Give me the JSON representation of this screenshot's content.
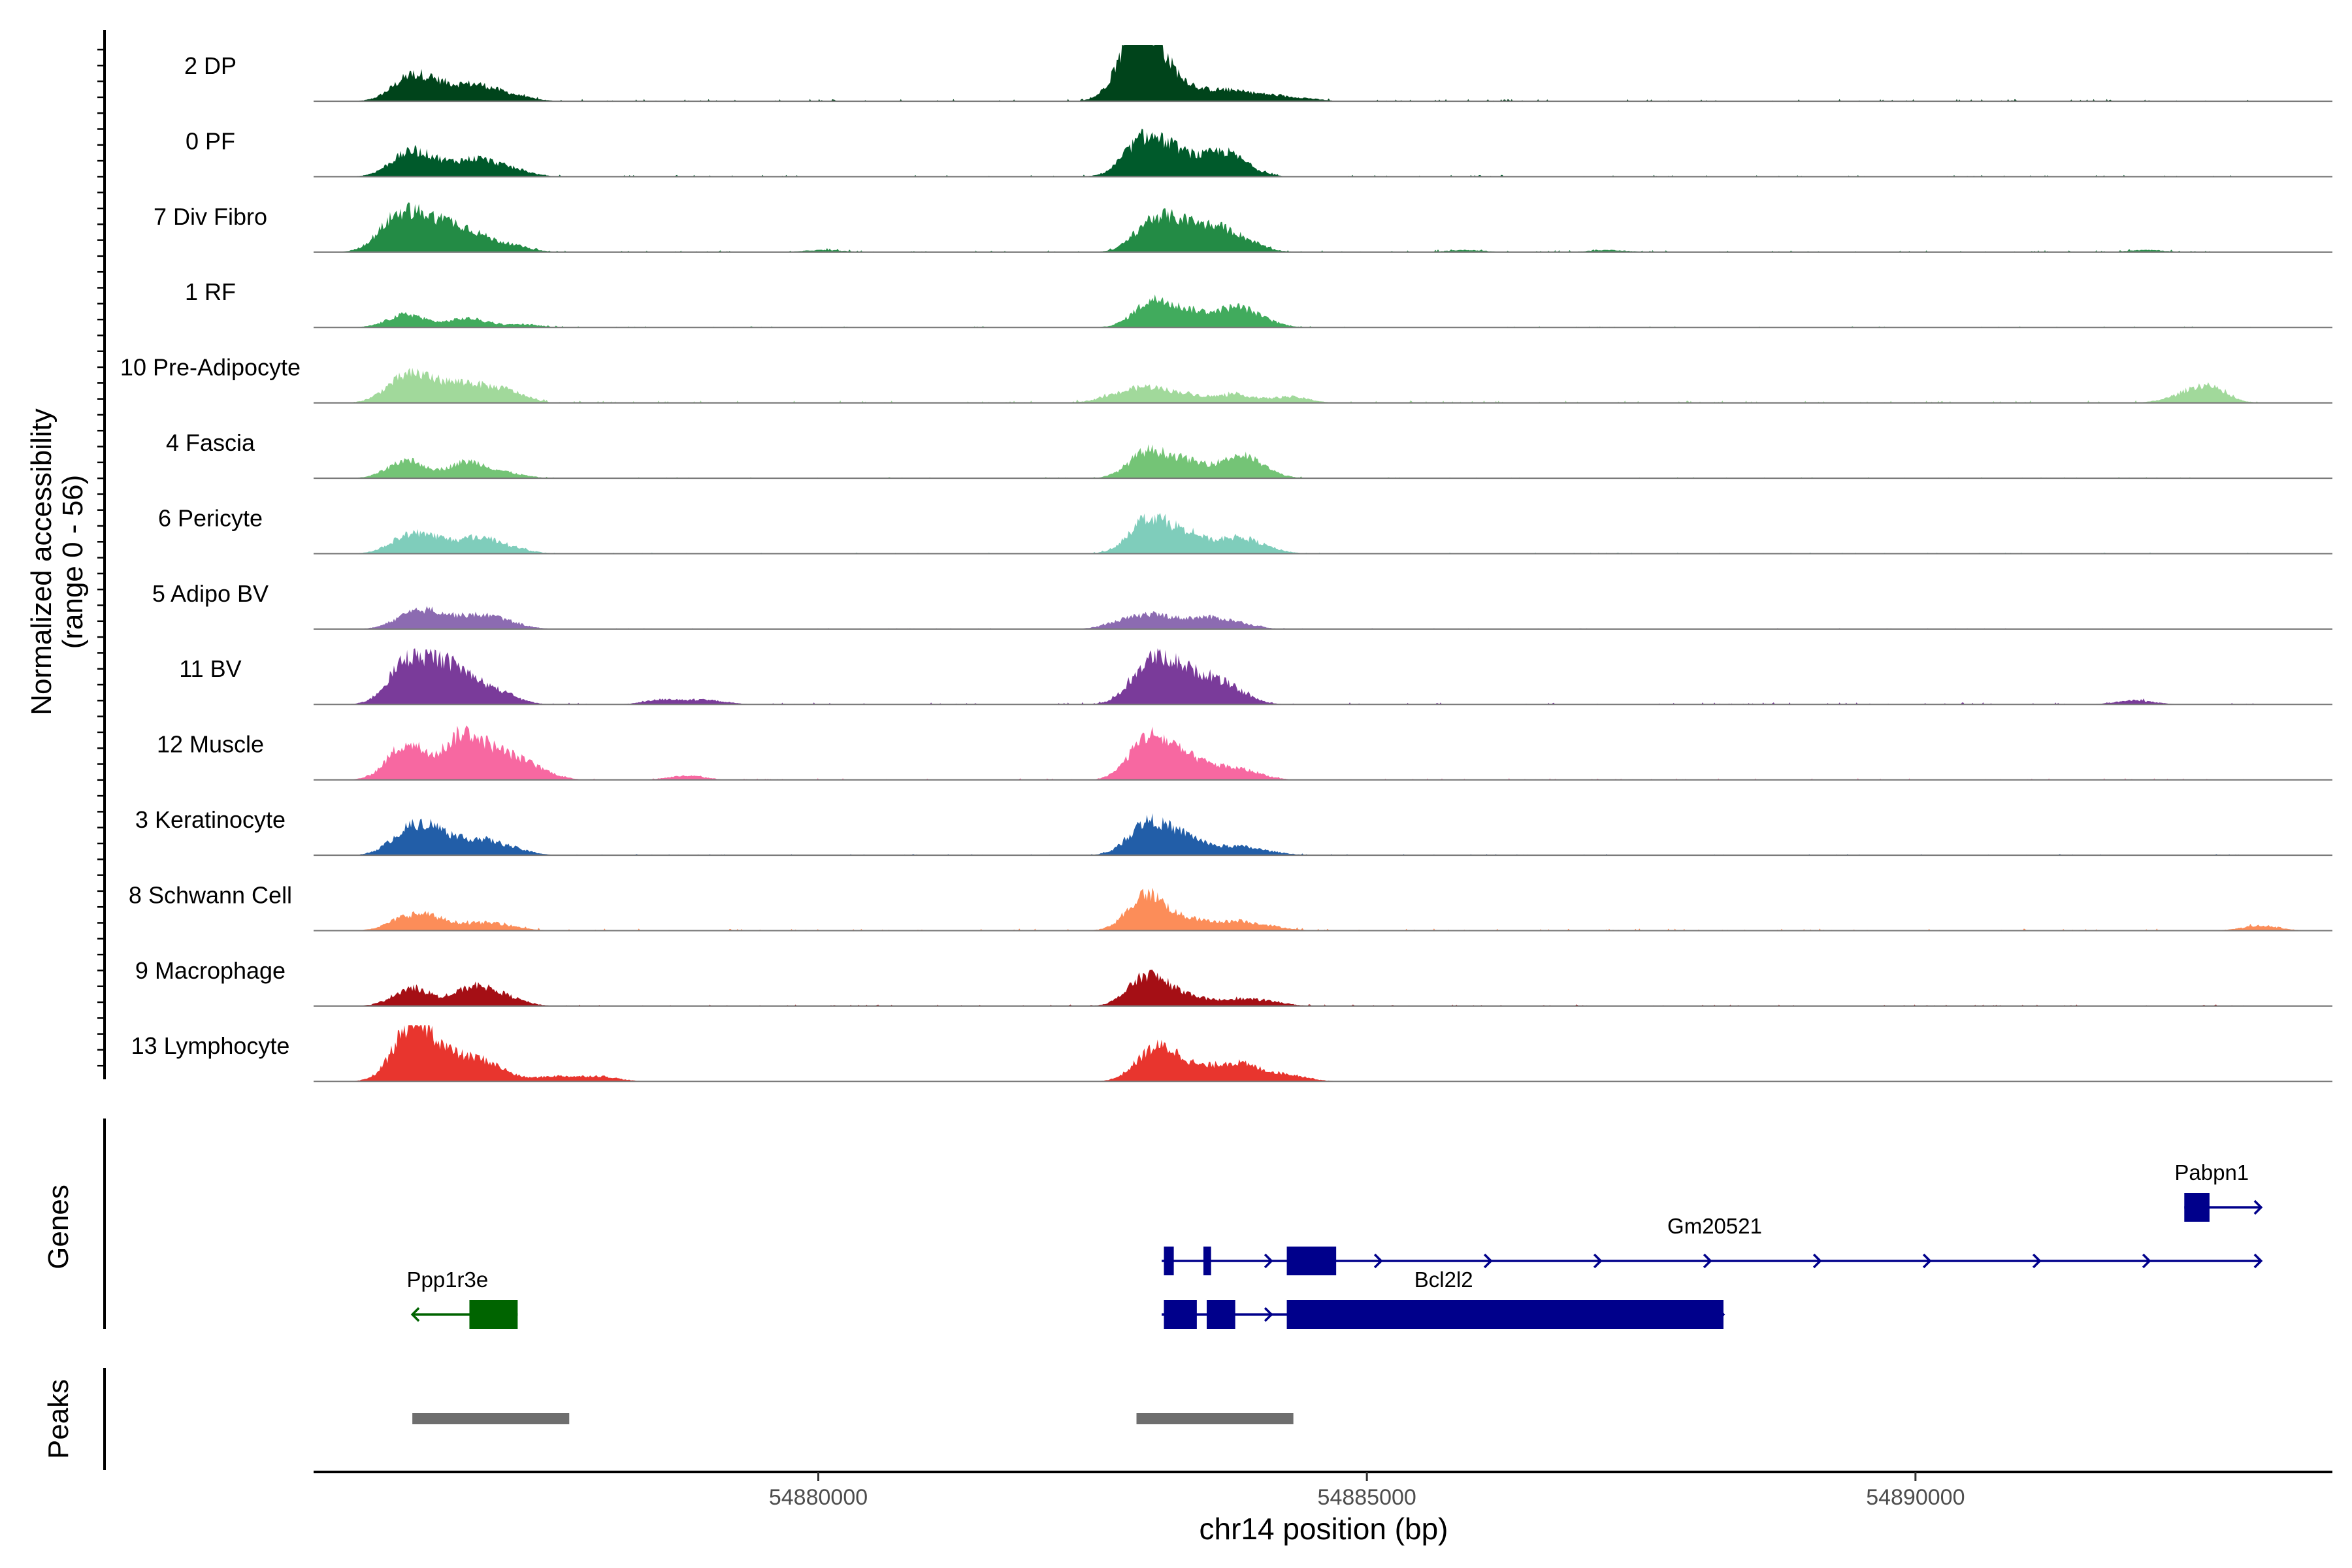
{
  "chart_data": {
    "type": "area",
    "title": "",
    "track_ylabel_line1": "Normalized accessibility",
    "track_ylabel_line2": "(range 0 - 56)",
    "y_range": [
      0,
      56
    ],
    "xlabel": "chr14 position (bp)",
    "xlim": [
      54875400,
      54893800
    ],
    "x_ticks": [
      {
        "value": 54880000,
        "label": "54880000"
      },
      {
        "value": 54885000,
        "label": "54885000"
      },
      {
        "value": 54890000,
        "label": "54890000"
      }
    ],
    "tracks": [
      {
        "label": "2 DP",
        "color": "#00441b",
        "peaks": [
          [
            54876280,
            22
          ],
          [
            54876530,
            12
          ],
          [
            54876850,
            13
          ],
          [
            54877070,
            5
          ],
          [
            54877270,
            3
          ],
          [
            54882900,
            56
          ],
          [
            54883020,
            28
          ],
          [
            54883300,
            15
          ],
          [
            54883700,
            10
          ],
          [
            54884050,
            6
          ],
          [
            54884400,
            3
          ]
        ],
        "noise_start": 54876300,
        "noise_end": 54893150,
        "noise_level": 1.5
      },
      {
        "label": "0 PF",
        "color": "#005a2b",
        "peaks": [
          [
            54876250,
            20
          ],
          [
            54876500,
            12
          ],
          [
            54876880,
            16
          ],
          [
            54877200,
            7
          ],
          [
            54882950,
            34
          ],
          [
            54883250,
            22
          ],
          [
            54883650,
            20
          ],
          [
            54883850,
            8
          ]
        ],
        "noise_start": 54876300,
        "noise_end": 54893150,
        "noise_level": 1.2
      },
      {
        "label": "7 Div Fibro",
        "color": "#238b45",
        "peaks": [
          [
            54876150,
            30
          ],
          [
            54876400,
            22
          ],
          [
            54876650,
            18
          ],
          [
            54876880,
            12
          ],
          [
            54877200,
            6
          ],
          [
            54883050,
            30
          ],
          [
            54883350,
            22
          ],
          [
            54883650,
            18
          ],
          [
            54883900,
            8
          ],
          [
            54880050,
            2
          ],
          [
            54885900,
            2
          ],
          [
            54887200,
            2
          ],
          [
            54892100,
            2
          ]
        ],
        "noise_start": 54876300,
        "noise_end": 54893150,
        "noise_level": 1.2
      },
      {
        "label": "1 RF",
        "color": "#41ab5d",
        "peaks": [
          [
            54876250,
            13
          ],
          [
            54876800,
            9
          ],
          [
            54877300,
            3
          ],
          [
            54883050,
            26
          ],
          [
            54883400,
            14
          ],
          [
            54883800,
            18
          ],
          [
            54884050,
            5
          ]
        ],
        "noise_start": 54876300,
        "noise_end": 54893150,
        "noise_level": 0.8
      },
      {
        "label": "10 Pre-Adipocyte",
        "color": "#a1d99b",
        "peaks": [
          [
            54876200,
            20
          ],
          [
            54876450,
            18
          ],
          [
            54876800,
            17
          ],
          [
            54877150,
            12
          ],
          [
            54882700,
            6
          ],
          [
            54883000,
            14
          ],
          [
            54883350,
            8
          ],
          [
            54883800,
            8
          ],
          [
            54884300,
            6
          ],
          [
            54892650,
            16
          ],
          [
            54892400,
            4
          ]
        ],
        "noise_start": 54876300,
        "noise_end": 54893150,
        "noise_level": 1.6
      },
      {
        "label": "4 Fascia",
        "color": "#74c476",
        "peaks": [
          [
            54876250,
            18
          ],
          [
            54876800,
            16
          ],
          [
            54877150,
            5
          ],
          [
            54883000,
            26
          ],
          [
            54883350,
            16
          ],
          [
            54883800,
            18
          ],
          [
            54884000,
            8
          ]
        ],
        "noise_start": 54876300,
        "noise_end": 54893150,
        "noise_level": 0.8
      },
      {
        "label": "6 Pericyte",
        "color": "#7fcdbb",
        "peaks": [
          [
            54876250,
            15
          ],
          [
            54876500,
            12
          ],
          [
            54876900,
            15
          ],
          [
            54877200,
            5
          ],
          [
            54883000,
            34
          ],
          [
            54883350,
            20
          ],
          [
            54883800,
            14
          ],
          [
            54884050,
            5
          ]
        ],
        "noise_start": 54876300,
        "noise_end": 54893150,
        "noise_level": 0.8
      },
      {
        "label": "5 Adipo BV",
        "color": "#8c6bb1",
        "peaks": [
          [
            54876300,
            14
          ],
          [
            54876550,
            11
          ],
          [
            54876900,
            11
          ],
          [
            54877150,
            6
          ],
          [
            54882800,
            8
          ],
          [
            54883100,
            12
          ],
          [
            54883500,
            10
          ],
          [
            54883800,
            6
          ]
        ],
        "noise_start": 54876300,
        "noise_end": 54893150,
        "noise_level": 0.6
      },
      {
        "label": "11 BV",
        "color": "#7a3b9a",
        "peaks": [
          [
            54876250,
            40
          ],
          [
            54876550,
            30
          ],
          [
            54876800,
            20
          ],
          [
            54877100,
            10
          ],
          [
            54883000,
            34
          ],
          [
            54883250,
            28
          ],
          [
            54883550,
            20
          ],
          [
            54883800,
            10
          ],
          [
            54878600,
            5
          ],
          [
            54879000,
            4
          ],
          [
            54892000,
            4
          ]
        ],
        "noise_start": 54876300,
        "noise_end": 54893150,
        "noise_level": 1.4
      },
      {
        "label": "12 Muscle",
        "color": "#f768a1",
        "peaks": [
          [
            54876250,
            36
          ],
          [
            54876750,
            42
          ],
          [
            54877050,
            20
          ],
          [
            54877300,
            12
          ],
          [
            54877500,
            4
          ],
          [
            54883000,
            40
          ],
          [
            54883300,
            20
          ],
          [
            54883600,
            10
          ],
          [
            54883900,
            8
          ],
          [
            54878800,
            4
          ]
        ],
        "noise_start": 54876300,
        "noise_end": 54893150,
        "noise_level": 1.0
      },
      {
        "label": "3 Keratinocyte",
        "color": "#225ea8",
        "peaks": [
          [
            54876250,
            20
          ],
          [
            54876500,
            22
          ],
          [
            54876900,
            14
          ],
          [
            54877200,
            6
          ],
          [
            54883000,
            32
          ],
          [
            54883350,
            18
          ],
          [
            54883800,
            8
          ],
          [
            54884100,
            3
          ]
        ],
        "noise_start": 54876300,
        "noise_end": 54893150,
        "noise_level": 0.8
      },
      {
        "label": "8 Schwann Cell",
        "color": "#fc8d59",
        "peaks": [
          [
            54876250,
            12
          ],
          [
            54876500,
            10
          ],
          [
            54876900,
            6
          ],
          [
            54877150,
            4
          ],
          [
            54883000,
            36
          ],
          [
            54883400,
            10
          ],
          [
            54883800,
            8
          ],
          [
            54884100,
            4
          ],
          [
            54893150,
            5
          ]
        ],
        "noise_start": 54876300,
        "noise_end": 54893150,
        "noise_level": 1.4
      },
      {
        "label": "9 Macrophage",
        "color": "#a50f15",
        "peaks": [
          [
            54876300,
            18
          ],
          [
            54876850,
            18
          ],
          [
            54877150,
            8
          ],
          [
            54883000,
            30
          ],
          [
            54883350,
            10
          ],
          [
            54883800,
            6
          ],
          [
            54884100,
            4
          ]
        ],
        "noise_start": 54876300,
        "noise_end": 54893150,
        "noise_level": 1.0
      },
      {
        "label": "13 Lymphocyte",
        "color": "#e8352e",
        "peaks": [
          [
            54876300,
            56
          ],
          [
            54876600,
            20
          ],
          [
            54876900,
            16
          ],
          [
            54877100,
            6
          ],
          [
            54877600,
            5
          ],
          [
            54878000,
            5
          ],
          [
            54883050,
            28
          ],
          [
            54883300,
            16
          ],
          [
            54883700,
            14
          ],
          [
            54883950,
            10
          ],
          [
            54884300,
            6
          ]
        ],
        "noise_start": 54876300,
        "noise_end": 54885300,
        "noise_level": 0.0
      }
    ],
    "genes_label": "Genes",
    "genes": [
      {
        "name": "Ppp1r3e",
        "color": "#006400",
        "strand": "-",
        "line": [
          54876300,
          54877260
        ],
        "exons": [
          [
            54876820,
            54877260
          ]
        ],
        "row": 2,
        "label_x": 54876620,
        "label_side": "above"
      },
      {
        "name": "Bcl2l2",
        "color": "#00008b",
        "strand": "+",
        "line": [
          54883130,
          54888250
        ],
        "exons": [
          [
            54883150,
            54883450
          ],
          [
            54883540,
            54883800
          ],
          [
            54884270,
            54888250
          ]
        ],
        "row": 2,
        "label_x": 54885700,
        "label_side": "above"
      },
      {
        "name": "Gm20521",
        "color": "#00008b",
        "strand": "+",
        "line": [
          54883130,
          54893150
        ],
        "exons": [
          [
            54883150,
            54883240
          ],
          [
            54883510,
            54883580
          ],
          [
            54884270,
            54884720
          ]
        ],
        "row": 1,
        "label_x": 54888170,
        "label_side": "above"
      },
      {
        "name": "Pabpn1",
        "color": "#00008b",
        "strand": "+",
        "line": [
          54892450,
          54893150
        ],
        "exons": [
          [
            54892450,
            54892680
          ]
        ],
        "row": 0,
        "label_x": 54892700,
        "label_side": "above"
      }
    ],
    "peaks_label": "Peaks",
    "peak_regions": [
      [
        54876300,
        54877730
      ],
      [
        54882900,
        54884330
      ]
    ],
    "peak_color": "#6e6e6e"
  }
}
